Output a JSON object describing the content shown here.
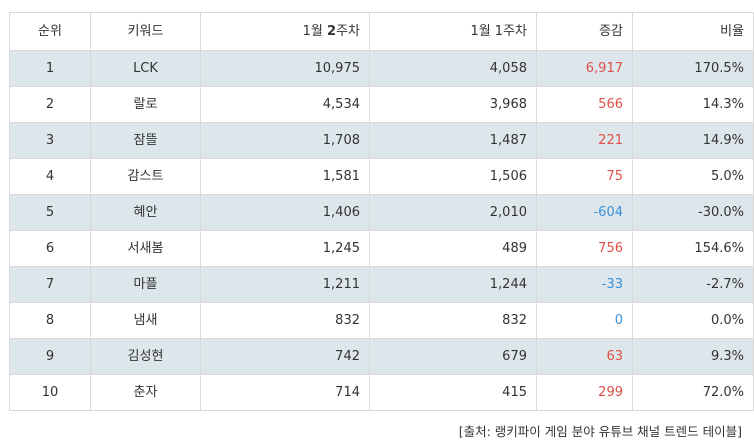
{
  "headers": {
    "rank": "순위",
    "keyword": "키워드",
    "week2_prefix": "1월 ",
    "week2_bold": "2",
    "week2_suffix": "주차",
    "week1": "1월 1주차",
    "change": "증감",
    "ratio": "비율"
  },
  "rows": [
    {
      "rank": "1",
      "keyword": "LCK",
      "week2": "10,975",
      "week1": "4,058",
      "change": "6,917",
      "ratio": "170.5%",
      "sign": "pos"
    },
    {
      "rank": "2",
      "keyword": "랄로",
      "week2": "4,534",
      "week1": "3,968",
      "change": "566",
      "ratio": "14.3%",
      "sign": "pos"
    },
    {
      "rank": "3",
      "keyword": "잠뜰",
      "week2": "1,708",
      "week1": "1,487",
      "change": "221",
      "ratio": "14.9%",
      "sign": "pos"
    },
    {
      "rank": "4",
      "keyword": "감스트",
      "week2": "1,581",
      "week1": "1,506",
      "change": "75",
      "ratio": "5.0%",
      "sign": "pos"
    },
    {
      "rank": "5",
      "keyword": "혜안",
      "week2": "1,406",
      "week1": "2,010",
      "change": "-604",
      "ratio": "-30.0%",
      "sign": "neg"
    },
    {
      "rank": "6",
      "keyword": "서새봄",
      "week2": "1,245",
      "week1": "489",
      "change": "756",
      "ratio": "154.6%",
      "sign": "pos"
    },
    {
      "rank": "7",
      "keyword": "마플",
      "week2": "1,211",
      "week1": "1,244",
      "change": "-33",
      "ratio": "-2.7%",
      "sign": "neg"
    },
    {
      "rank": "8",
      "keyword": "냄새",
      "week2": "832",
      "week1": "832",
      "change": "0",
      "ratio": "0.0%",
      "sign": "neg"
    },
    {
      "rank": "9",
      "keyword": "김성현",
      "week2": "742",
      "week1": "679",
      "change": "63",
      "ratio": "9.3%",
      "sign": "pos"
    },
    {
      "rank": "10",
      "keyword": "춘자",
      "week2": "714",
      "week1": "415",
      "change": "299",
      "ratio": "72.0%",
      "sign": "pos"
    }
  ],
  "colors": {
    "row_shade": "#dde6eb",
    "positive": "#e0504a",
    "negative": "#3b8fd8",
    "border": "#d9d9d9"
  },
  "source": "[출처: 랭키파이 게임 분야 유튜브 채널 트렌드 테이블]"
}
